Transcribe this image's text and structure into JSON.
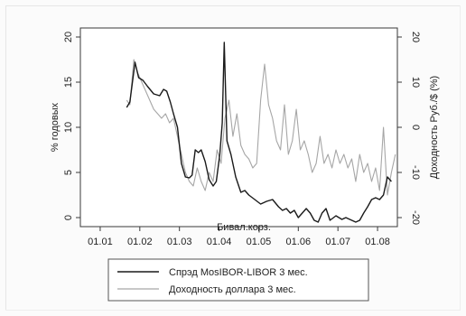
{
  "chart_data": {
    "type": "line",
    "title": "",
    "xlabel": "Бивал.корз.",
    "ylabel_left": "% годовых",
    "ylabel_right": "Доходность Руб./$ (%)",
    "x_ticks": [
      "01.01",
      "01.02",
      "01.03",
      "01.04",
      "01.05",
      "01.06",
      "01.07",
      "01.08"
    ],
    "y_left_ticks": [
      0,
      5,
      10,
      15,
      20
    ],
    "y_left_lim": [
      -1,
      21
    ],
    "y_right_ticks": [
      -20,
      -10,
      0,
      10,
      20
    ],
    "y_right_lim": [
      -22,
      22
    ],
    "legend_position": "bottom",
    "grid": false,
    "series": [
      {
        "name": "Спрэд MosIBOR-LIBOR 3 мес.",
        "axis": "left",
        "color": "#1a1a1a",
        "x": [
          1.67,
          1.75,
          1.88,
          1.97,
          2.08,
          2.2,
          2.35,
          2.5,
          2.6,
          2.68,
          2.77,
          2.85,
          2.95,
          3.05,
          3.15,
          3.25,
          3.32,
          3.4,
          3.48,
          3.55,
          3.65,
          3.75,
          3.85,
          3.93,
          4.02,
          4.08,
          4.13,
          4.2,
          4.3,
          4.42,
          4.55,
          4.65,
          4.75,
          4.9,
          5.05,
          5.2,
          5.35,
          5.5,
          5.6,
          5.7,
          5.8,
          5.9,
          6.0,
          6.1,
          6.2,
          6.3,
          6.4,
          6.5,
          6.6,
          6.7,
          6.8,
          6.95,
          7.1,
          7.2,
          7.3,
          7.45,
          7.55,
          7.65,
          7.75,
          7.85,
          7.95,
          8.05,
          8.15,
          8.25,
          8.35
        ],
        "values": [
          12.2,
          12.8,
          17.2,
          15.5,
          15.2,
          14.5,
          13.7,
          13.5,
          14.2,
          14.0,
          12.8,
          11.5,
          10.0,
          6.0,
          4.5,
          4.4,
          4.7,
          7.5,
          7.2,
          7.5,
          6.2,
          4.2,
          3.5,
          4.0,
          7.0,
          10.5,
          19.4,
          8.5,
          7.0,
          4.5,
          2.8,
          3.0,
          2.5,
          2.0,
          1.5,
          1.8,
          2.0,
          1.2,
          0.8,
          1.0,
          0.5,
          0.8,
          0.0,
          0.5,
          1.0,
          0.5,
          -0.3,
          -0.5,
          0.5,
          1.0,
          -0.3,
          0.2,
          -0.2,
          0.0,
          -0.2,
          -0.5,
          -0.3,
          0.5,
          1.2,
          2.0,
          2.2,
          2.0,
          2.5,
          4.5,
          4.0
        ]
      },
      {
        "name": "Доходность доллара 3 мес.",
        "axis": "right",
        "color": "#a6a6a6",
        "x": [
          1.67,
          1.75,
          1.85,
          1.95,
          2.05,
          2.15,
          2.25,
          2.35,
          2.45,
          2.55,
          2.65,
          2.75,
          2.85,
          2.95,
          3.05,
          3.15,
          3.25,
          3.35,
          3.45,
          3.55,
          3.65,
          3.75,
          3.85,
          3.95,
          4.05,
          4.15,
          4.25,
          4.35,
          4.45,
          4.55,
          4.65,
          4.75,
          4.85,
          4.95,
          5.05,
          5.15,
          5.25,
          5.35,
          5.45,
          5.55,
          5.65,
          5.75,
          5.85,
          5.95,
          6.05,
          6.15,
          6.25,
          6.35,
          6.45,
          6.55,
          6.65,
          6.75,
          6.85,
          6.95,
          7.05,
          7.15,
          7.25,
          7.35,
          7.45,
          7.55,
          7.65,
          7.75,
          7.85,
          7.95,
          8.05,
          8.15,
          8.25,
          8.35,
          8.45
        ],
        "values": [
          6.0,
          5.0,
          15.0,
          12.0,
          10.0,
          8.0,
          6.0,
          4.0,
          3.0,
          2.0,
          3.0,
          1.0,
          2.0,
          -2.0,
          -6.0,
          -10.0,
          -12.0,
          -13.0,
          -9.0,
          -12.0,
          -14.0,
          -10.0,
          -12.0,
          -5.0,
          -8.0,
          2.0,
          6.0,
          -2.0,
          3.0,
          -4.0,
          -6.0,
          -7.0,
          -9.0,
          -8.0,
          6.0,
          14.0,
          5.0,
          2.0,
          -3.0,
          -5.0,
          5.0,
          -6.0,
          -3.0,
          4.0,
          -5.0,
          -3.0,
          -6.0,
          -10.0,
          -8.0,
          -2.0,
          -8.0,
          -6.0,
          -9.0,
          -5.0,
          -8.0,
          -6.0,
          -9.0,
          -7.0,
          -12.0,
          -6.0,
          -10.0,
          -8.0,
          -12.0,
          -9.0,
          -14.0,
          0.0,
          -15.0,
          -10.0,
          -6.0
        ]
      }
    ]
  }
}
